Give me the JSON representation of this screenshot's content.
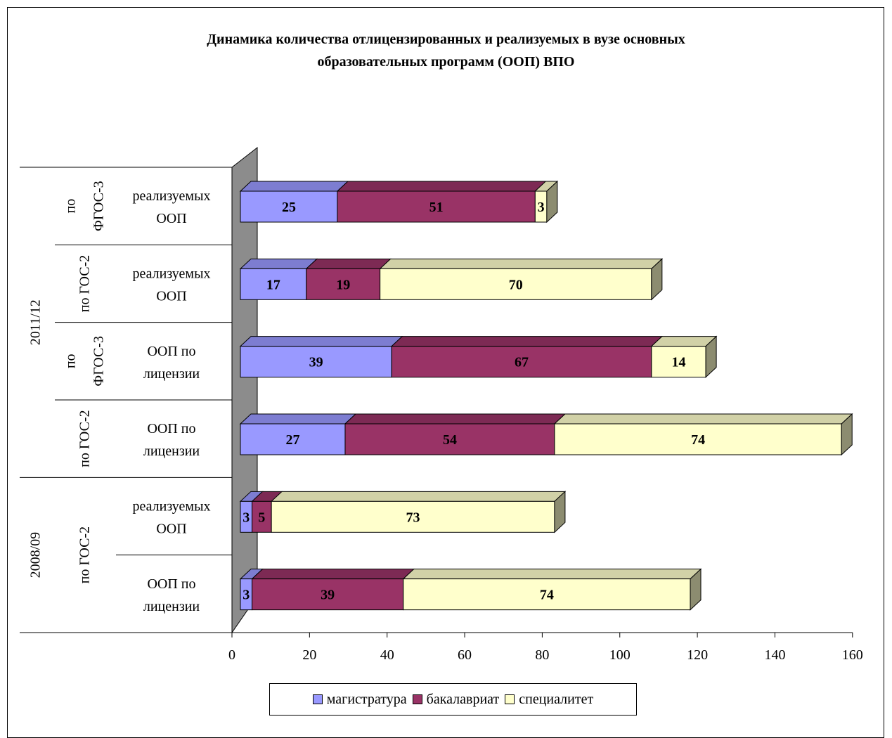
{
  "chart_data": {
    "type": "bar",
    "orientation": "horizontal",
    "stacked": true,
    "three_d": true,
    "title": "Динамика количества отлицензированных и реализуемых в вузе основных образовательных программ (ООП) ВПО",
    "title_lines": [
      "Динамика количества отлицензированных и реализуемых в вузе основных",
      "образовательных программ (ООП) ВПО"
    ],
    "categories": [
      {
        "year": "2011/12",
        "group": [
          "по",
          "ФГОС-3"
        ],
        "label": [
          "реализуемых",
          "ООП"
        ]
      },
      {
        "year": "2011/12",
        "group": [
          "по ГОС-2"
        ],
        "label": [
          "реализуемых",
          "ООП"
        ]
      },
      {
        "year": "2011/12",
        "group": [
          "по",
          "ФГОС-3"
        ],
        "label": [
          "ООП по",
          "лицензии"
        ]
      },
      {
        "year": "2011/12",
        "group": [
          "по ГОС-2"
        ],
        "label": [
          "ООП по",
          "лицензии"
        ]
      },
      {
        "year": "2008/09",
        "group": [
          "по ГОС-2"
        ],
        "label": [
          "реализуемых",
          "ООП"
        ]
      },
      {
        "year": "2008/09",
        "group": [
          "по ГОС-2"
        ],
        "label": [
          "ООП по",
          "лицензии"
        ]
      }
    ],
    "year_groups": [
      {
        "year": "2011/12",
        "span": [
          0,
          3
        ]
      },
      {
        "year": "2008/09",
        "span": [
          4,
          5
        ]
      }
    ],
    "standard_groups": [
      {
        "lines": [
          "по",
          "ФГОС-3"
        ],
        "span": [
          0,
          0
        ]
      },
      {
        "lines": [
          "по ГОС-2"
        ],
        "span": [
          1,
          1
        ]
      },
      {
        "lines": [
          "по",
          "ФГОС-3"
        ],
        "span": [
          2,
          2
        ]
      },
      {
        "lines": [
          "по ГОС-2"
        ],
        "span": [
          3,
          3
        ]
      },
      {
        "lines": [
          "по ГОС-2"
        ],
        "span": [
          4,
          5
        ]
      }
    ],
    "series": [
      {
        "name": "магистратура",
        "color": "#9999ff",
        "values": [
          25,
          17,
          39,
          27,
          3,
          3
        ]
      },
      {
        "name": "бакалавриат",
        "color": "#993366",
        "values": [
          51,
          19,
          67,
          54,
          5,
          39
        ]
      },
      {
        "name": "специалитет",
        "color": "#ffffcc",
        "values": [
          3,
          70,
          14,
          74,
          73,
          74
        ]
      }
    ],
    "xlim": [
      0,
      160
    ],
    "xticks": [
      0,
      20,
      40,
      60,
      80,
      100,
      120,
      140,
      160
    ],
    "grid": false,
    "legend_position": "bottom"
  }
}
